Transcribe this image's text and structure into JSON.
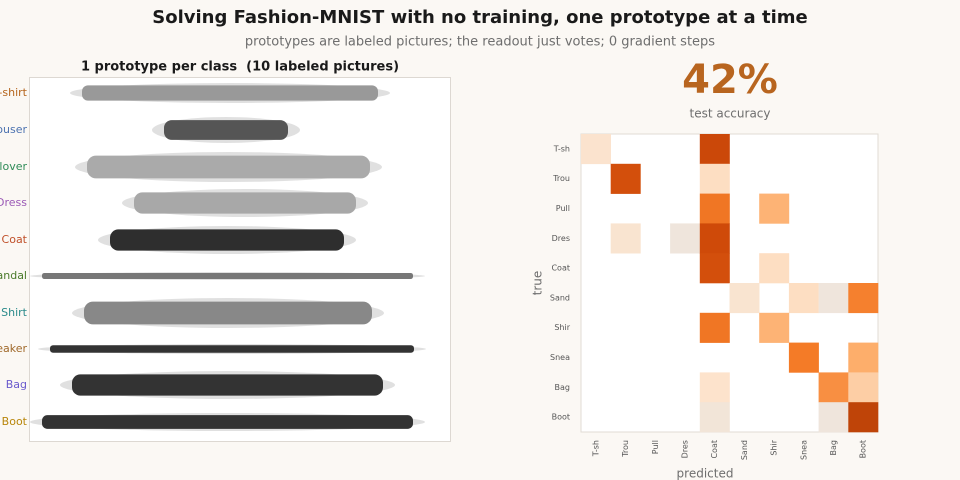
{
  "title": "Solving Fashion-MNIST with no training, one prototype at a time",
  "subtitle": "prototypes are labeled pictures; the readout just votes; 0 gradient steps",
  "prototypes": {
    "title": "1 prototype per class  (10 labeled pictures)",
    "labels": [
      {
        "text": "T-shirt",
        "color": "#b5651d"
      },
      {
        "text": "Trouser",
        "color": "#4c72b0"
      },
      {
        "text": "Pullover",
        "color": "#2e8b57"
      },
      {
        "text": "Dress",
        "color": "#9b59b6"
      },
      {
        "text": "Coat",
        "color": "#c0502a"
      },
      {
        "text": "Sandal",
        "color": "#4a7a2a"
      },
      {
        "text": "Shirt",
        "color": "#2a8a8a"
      },
      {
        "text": "Sneaker",
        "color": "#a0692a"
      },
      {
        "text": "Bag",
        "color": "#6a5acd"
      },
      {
        "text": "Boot",
        "color": "#b8860b"
      }
    ]
  },
  "accuracy": {
    "label": "42%",
    "caption": "test accuracy",
    "color": "#b8651f"
  },
  "chart_data": {
    "type": "heatmap",
    "xlabel": "predicted",
    "ylabel": "true",
    "categories": [
      "T-sh",
      "Trou",
      "Pull",
      "Dres",
      "Coat",
      "Sand",
      "Shir",
      "Snea",
      "Bag",
      "Boot"
    ],
    "colorscale": [
      "#ebe6e0",
      "#fde3cc",
      "#fdae6b",
      "#f47b27",
      "#cf4a09",
      "#a83a06"
    ],
    "values": [
      [
        0.18,
        0,
        0,
        0,
        0.82,
        0,
        0,
        0,
        0,
        0
      ],
      [
        0,
        0.78,
        0,
        0,
        0.22,
        0,
        0,
        0,
        0,
        0
      ],
      [
        0,
        0,
        0,
        0,
        0.62,
        0,
        0.38,
        0,
        0,
        0
      ],
      [
        0,
        0.16,
        0,
        0.04,
        0.8,
        0,
        0,
        0,
        0,
        0
      ],
      [
        0,
        0,
        0,
        0,
        0.78,
        0,
        0.22,
        0,
        0,
        0
      ],
      [
        0,
        0,
        0,
        0,
        0,
        0.16,
        0,
        0.22,
        0.04,
        0.58
      ],
      [
        0,
        0,
        0,
        0,
        0.62,
        0,
        0.38,
        0,
        0,
        0
      ],
      [
        0,
        0,
        0,
        0,
        0,
        0,
        0,
        0.6,
        0,
        0.4
      ],
      [
        0,
        0,
        0,
        0,
        0.2,
        0,
        0,
        0,
        0.52,
        0.28
      ],
      [
        0,
        0,
        0,
        0,
        0.08,
        0,
        0,
        0,
        0.04,
        0.88
      ]
    ]
  }
}
